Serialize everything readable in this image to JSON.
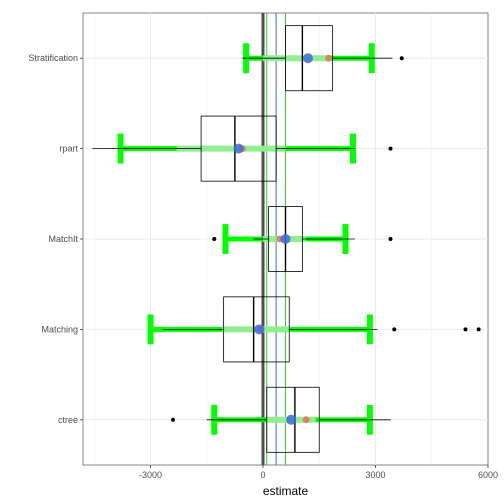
{
  "chart_data": {
    "type": "boxplot",
    "xlabel": "estimate",
    "ylabel": "",
    "xlim": [
      -4800,
      6000
    ],
    "x_ticks": [
      -3000,
      0,
      3000,
      6000
    ],
    "x_tick_labels": [
      "-3000",
      "0",
      "3000",
      "6000"
    ],
    "grid": true,
    "categories": [
      "Stratification",
      "rpart",
      "MatchIt",
      "Matching",
      "ctree"
    ],
    "boxes": [
      {
        "category": "Stratification",
        "whisker_low": -550,
        "q1": 600,
        "median": 1050,
        "q3": 1850,
        "whisker_high": 3450,
        "outliers": [
          3700
        ]
      },
      {
        "category": "rpart",
        "whisker_low": -4550,
        "q1": -1650,
        "median": -750,
        "q3": 350,
        "whisker_high": 2450,
        "outliers": [
          3400
        ]
      },
      {
        "category": "MatchIt",
        "whisker_low": -250,
        "q1": 150,
        "median": 600,
        "q3": 1050,
        "whisker_high": 2450,
        "outliers": [
          -1300,
          3400
        ]
      },
      {
        "category": "Matching",
        "whisker_low": -2650,
        "q1": -1050,
        "median": -250,
        "q3": 700,
        "whisker_high": 3050,
        "outliers": [
          3500,
          5400,
          5750
        ]
      },
      {
        "category": "ctree",
        "whisker_low": -1500,
        "q1": 100,
        "median": 850,
        "q3": 1500,
        "whisker_high": 3400,
        "outliers": [
          -2400
        ]
      }
    ],
    "intervals": [
      {
        "category": "Stratification",
        "outer_low": -450,
        "outer_high": 2900,
        "inner_low": 0,
        "inner_high": 1800
      },
      {
        "category": "rpart",
        "outer_low": -3800,
        "outer_high": 2400,
        "inner_low": -2300,
        "inner_high": 600
      },
      {
        "category": "MatchIt",
        "outer_low": -1000,
        "outer_high": 2200,
        "inner_low": 0,
        "inner_high": 1150
      },
      {
        "category": "Matching",
        "outer_low": -3000,
        "outer_high": 2850,
        "inner_low": -1100,
        "inner_high": 700
      },
      {
        "category": "ctree",
        "outer_low": -1300,
        "outer_high": 2850,
        "inner_low": 100,
        "inner_high": 1400
      }
    ],
    "points": [
      {
        "category": "Stratification",
        "red": 1750,
        "blue": 1200
      },
      {
        "category": "rpart",
        "red": -550,
        "blue": -650
      },
      {
        "category": "MatchIt",
        "red": 450,
        "blue": 600
      },
      {
        "category": "Matching",
        "red": -50,
        "blue": -100
      },
      {
        "category": "ctree",
        "red": 1150,
        "blue": 750
      }
    ],
    "reference_lines": [
      {
        "value": 0,
        "color": "#4d4d4d",
        "width": "thick"
      },
      {
        "value": 100,
        "color": "#33cc33",
        "width": "normal"
      },
      {
        "value": 350,
        "color": "#4169e1",
        "width": "normal"
      },
      {
        "value": 600,
        "color": "#33cc33",
        "width": "normal"
      }
    ],
    "colors": {
      "interval_outer": "#00ff00",
      "interval_inner": "#90ee90",
      "point_red": "#e07b54",
      "point_blue": "#4169e1",
      "box_stroke": "#000000",
      "outlier": "#000000",
      "grid": "#ebebeb",
      "panel_border": "#333333"
    }
  }
}
